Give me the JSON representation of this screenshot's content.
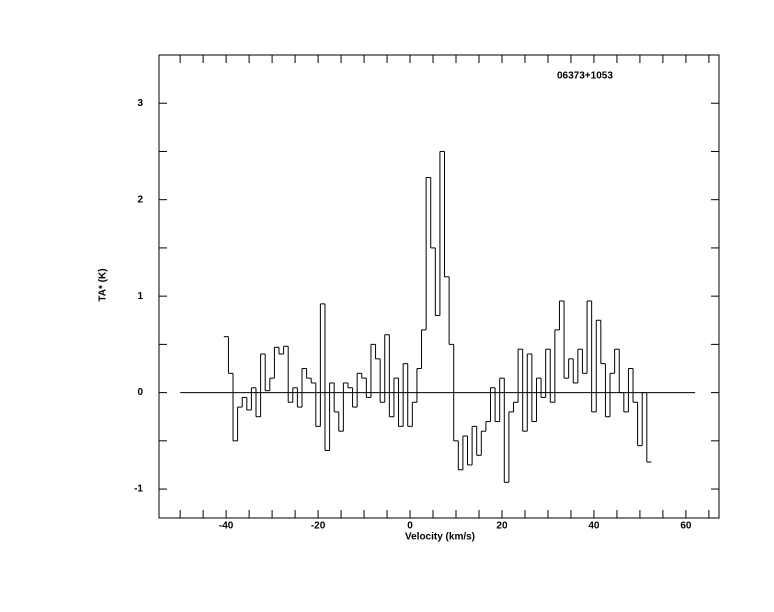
{
  "chart_data": {
    "type": "step",
    "title": "06373+1053",
    "x_label": "Velocity (km/s)",
    "y_label": "TA* (K)",
    "xlim": [
      -54.6,
      67.2
    ],
    "ylim": [
      -1.3,
      3.5
    ],
    "xticks": [
      -40,
      -20,
      0,
      20,
      40,
      60
    ],
    "xminorticks": [
      -50,
      -45,
      -35,
      -30,
      -25,
      -15,
      -10,
      -5,
      5,
      10,
      15,
      25,
      30,
      35,
      45,
      50,
      55,
      65
    ],
    "yticks": [
      -1,
      0,
      1,
      2,
      3
    ],
    "yminorticks": [
      -0.5,
      0.5,
      1.5,
      2.5
    ],
    "baseline": {
      "y": 0,
      "x": [
        -50,
        62
      ]
    },
    "color": "#000000",
    "x": [
      -40,
      -39,
      -38,
      -37,
      -36,
      -35,
      -34,
      -33,
      -32,
      -31,
      -30,
      -29,
      -28,
      -27,
      -26,
      -25,
      -24,
      -23,
      -22,
      -21,
      -20,
      -19,
      -18,
      -17,
      -16,
      -15,
      -14,
      -13,
      -12,
      -11,
      -10,
      -9,
      -8,
      -7,
      -6,
      -5,
      -4,
      -3,
      -2,
      -1,
      0,
      1,
      2,
      3,
      4,
      5,
      6,
      7,
      8,
      9,
      10,
      11,
      12,
      13,
      14,
      15,
      16,
      17,
      18,
      19,
      20,
      21,
      22,
      23,
      24,
      25,
      26,
      27,
      28,
      29,
      30,
      31,
      32,
      33,
      34,
      35,
      36,
      37,
      38,
      39,
      40,
      41,
      42,
      43,
      44,
      45,
      46,
      47,
      48,
      49,
      50,
      51,
      52
    ],
    "values": [
      0.58,
      0.2,
      -0.5,
      -0.15,
      -0.05,
      -0.18,
      0.05,
      -0.25,
      0.4,
      0.02,
      0.15,
      0.47,
      0.4,
      0.48,
      -0.1,
      0.05,
      -0.15,
      0.25,
      0.15,
      0.1,
      -0.35,
      0.92,
      -0.6,
      0.1,
      -0.2,
      -0.4,
      0.1,
      0.05,
      -0.15,
      0.2,
      0.15,
      -0.05,
      0.5,
      0.35,
      -0.1,
      0.6,
      -0.25,
      0.15,
      -0.35,
      0.3,
      -0.35,
      -0.1,
      0.25,
      0.65,
      2.23,
      1.5,
      0.8,
      2.5,
      1.2,
      0.5,
      -0.5,
      -0.8,
      -0.45,
      -0.75,
      -0.35,
      -0.65,
      -0.4,
      -0.3,
      0.05,
      -0.3,
      0.15,
      -0.93,
      -0.2,
      -0.1,
      0.45,
      -0.4,
      0.4,
      -0.3,
      0.15,
      -0.05,
      0.45,
      -0.1,
      0.65,
      0.95,
      0.15,
      0.35,
      0.1,
      0.45,
      0.2,
      0.95,
      -0.2,
      0.75,
      0.3,
      -0.25,
      0.2,
      0.45,
      0.0,
      -0.2,
      0.25,
      -0.1,
      -0.55,
      0.0,
      -0.72
    ]
  }
}
